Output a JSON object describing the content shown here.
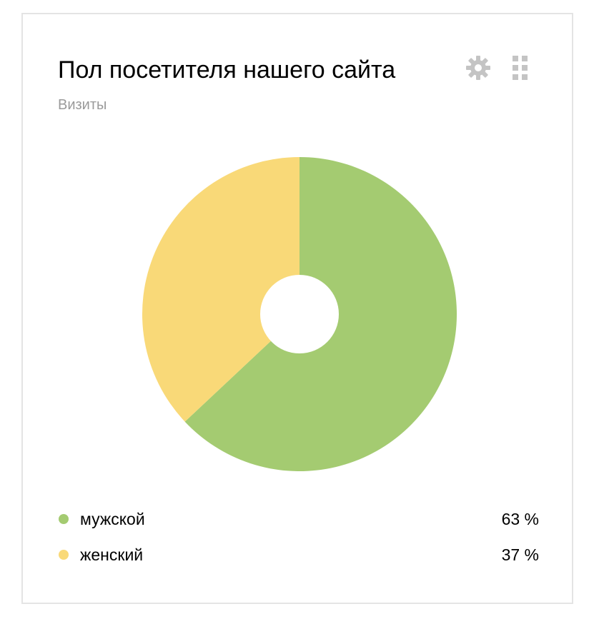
{
  "widget": {
    "title": "Пол посетителя нашего сайта",
    "subtitle": "Визиты",
    "icons": [
      "gear-icon",
      "drag-grid-icon"
    ]
  },
  "chart_data": {
    "type": "pie",
    "title": "Пол посетителя нашего сайта",
    "subtitle": "Визиты",
    "categories": [
      "мужской",
      "женский"
    ],
    "values": [
      63,
      37
    ],
    "value_labels": [
      "63 %",
      "37 %"
    ],
    "colors": [
      "#a4cb71",
      "#f9d978"
    ],
    "legend_position": "bottom",
    "donut": true
  }
}
